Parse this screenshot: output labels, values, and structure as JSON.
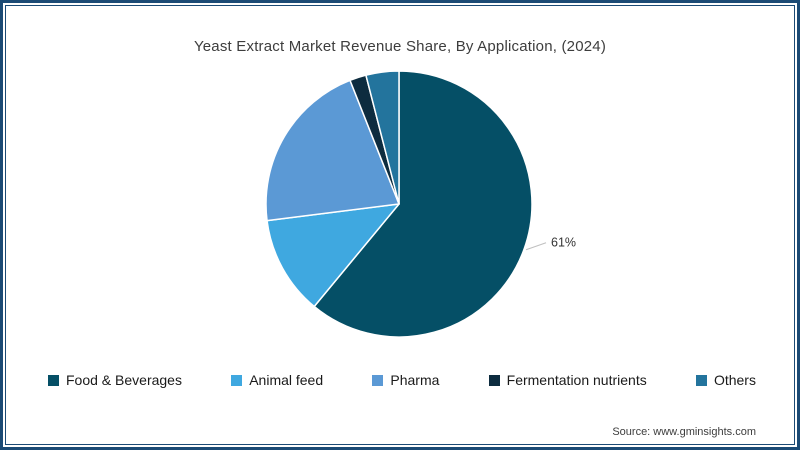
{
  "frame": {
    "border_color": "#1c4b75",
    "background": "#ffffff"
  },
  "source": "Source: www.gminsights.com",
  "chart_data": {
    "type": "pie",
    "title": "Yeast Extract Market Revenue Share, By Application, (2024)",
    "series": [
      {
        "name": "Food & Beverages",
        "value": 61,
        "color": "#054f66"
      },
      {
        "name": "Animal feed",
        "value": 12,
        "color": "#3fa8e0"
      },
      {
        "name": "Pharma",
        "value": 21,
        "color": "#5b99d5"
      },
      {
        "name": "Fermentation nutrients",
        "value": 2,
        "color": "#0d2c3f"
      },
      {
        "name": "Others",
        "value": 4,
        "color": "#23749d"
      }
    ],
    "start_angle_deg": 0,
    "direction": "clockwise",
    "slice_border_color": "#ffffff",
    "data_labels": [
      {
        "series": "Food & Beverages",
        "text": "61%"
      }
    ],
    "leader_line_color": "#c0c0c0",
    "legend_position": "bottom"
  }
}
